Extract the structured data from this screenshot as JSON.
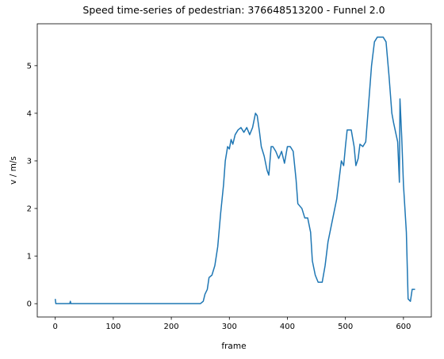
{
  "chart_data": {
    "type": "line",
    "title": "Speed time-series of pedestrian: 376648513200 - Funnel 2.0",
    "xlabel": "frame",
    "ylabel": "v / m/s",
    "color": "#1f77b4",
    "x": [
      0,
      1,
      25,
      26,
      27,
      250,
      255,
      258,
      262,
      265,
      270,
      275,
      280,
      285,
      290,
      293,
      297,
      300,
      303,
      306,
      310,
      315,
      320,
      325,
      330,
      335,
      340,
      345,
      348,
      352,
      355,
      360,
      365,
      368,
      372,
      375,
      380,
      385,
      390,
      395,
      400,
      405,
      410,
      415,
      418,
      425,
      430,
      435,
      440,
      443,
      448,
      453,
      460,
      465,
      470,
      475,
      480,
      485,
      490,
      493,
      497,
      500,
      503,
      510,
      515,
      518,
      522,
      525,
      530,
      535,
      540,
      545,
      550,
      555,
      565,
      570,
      575,
      580,
      583,
      590,
      593,
      594,
      597,
      600,
      605,
      608,
      612,
      615,
      620
    ],
    "values": [
      0.1,
      0,
      0,
      0.05,
      0,
      0,
      0.05,
      0.2,
      0.3,
      0.55,
      0.6,
      0.8,
      1.2,
      1.9,
      2.5,
      3.0,
      3.3,
      3.25,
      3.45,
      3.35,
      3.55,
      3.65,
      3.7,
      3.6,
      3.7,
      3.55,
      3.7,
      4.0,
      3.95,
      3.6,
      3.3,
      3.1,
      2.8,
      2.7,
      3.3,
      3.3,
      3.2,
      3.05,
      3.2,
      2.95,
      3.3,
      3.3,
      3.2,
      2.6,
      2.1,
      2.0,
      1.8,
      1.8,
      1.5,
      0.9,
      0.6,
      0.45,
      0.45,
      0.8,
      1.3,
      1.6,
      1.9,
      2.2,
      2.7,
      3.0,
      2.9,
      3.3,
      3.65,
      3.65,
      3.3,
      2.9,
      3.05,
      3.35,
      3.3,
      3.4,
      4.2,
      5.0,
      5.5,
      5.6,
      5.6,
      5.5,
      4.8,
      4.0,
      3.8,
      3.4,
      2.55,
      4.3,
      3.5,
      2.5,
      1.5,
      0.1,
      0.05,
      0.3,
      0.3
    ],
    "xlim": [
      -31,
      648
    ],
    "ylim": [
      -0.28,
      5.88
    ],
    "xticks": [
      0,
      100,
      200,
      300,
      400,
      500,
      600
    ],
    "yticks": [
      0,
      1,
      2,
      3,
      4,
      5
    ]
  }
}
